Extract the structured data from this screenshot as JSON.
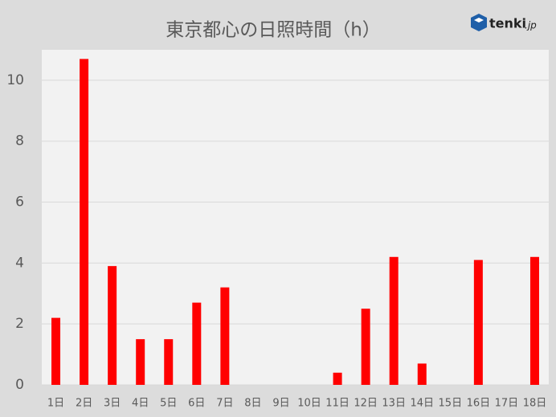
{
  "chart_data": {
    "type": "bar",
    "title": "東京都心の日照時間（h）",
    "brand": "tenki",
    "brand_suffix": ".jp",
    "categories": [
      "1日",
      "2日",
      "3日",
      "4日",
      "5日",
      "6日",
      "7日",
      "8日",
      "9日",
      "10日",
      "11日",
      "12日",
      "13日",
      "14日",
      "15日",
      "16日",
      "17日",
      "18日"
    ],
    "values": [
      2.2,
      10.7,
      3.9,
      1.5,
      1.5,
      2.7,
      3.2,
      0,
      0,
      0,
      0.4,
      2.5,
      4.2,
      0.7,
      0,
      4.1,
      0,
      4.2
    ],
    "color": "#ff0000",
    "ylim": [
      0,
      11
    ],
    "yticks": [
      0,
      2,
      4,
      6,
      8,
      10
    ],
    "grid": true
  }
}
